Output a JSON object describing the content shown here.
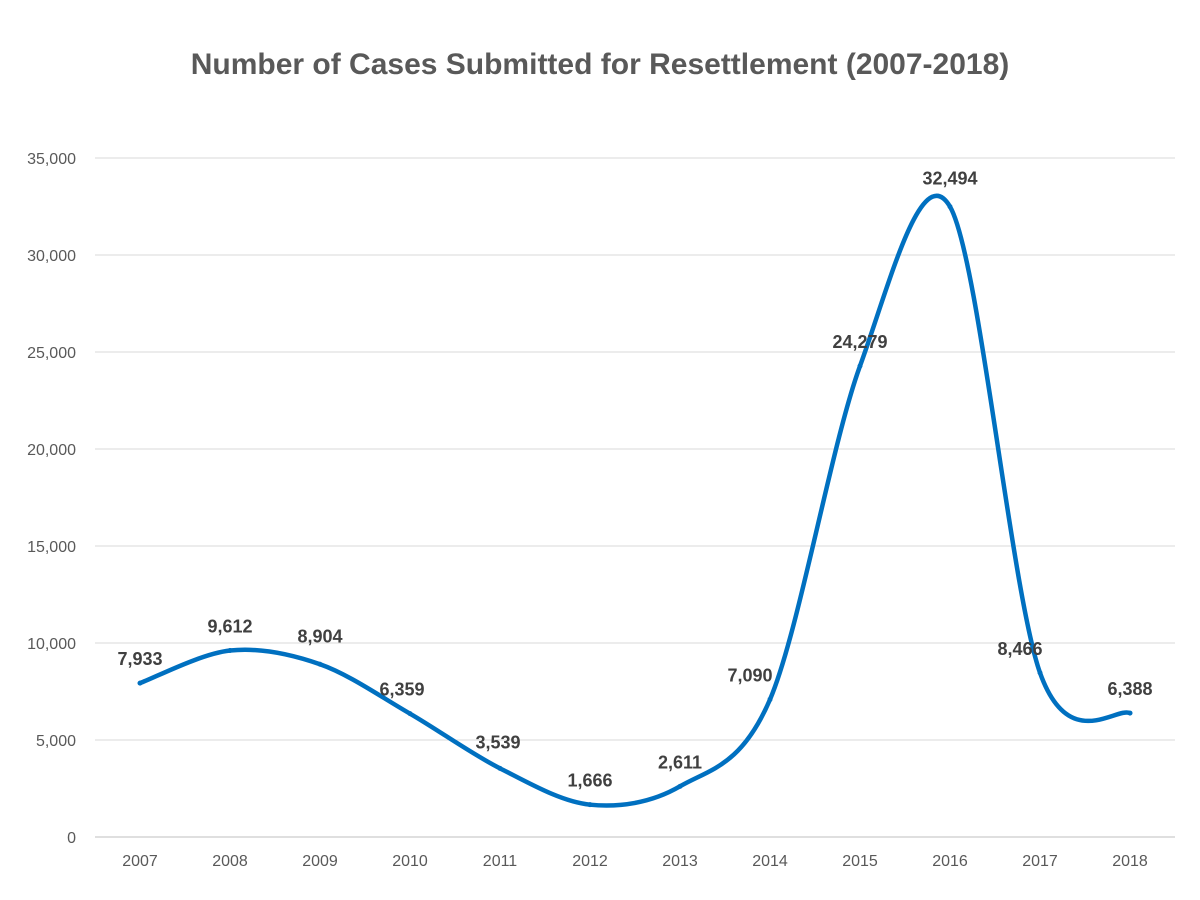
{
  "chart_data": {
    "type": "line",
    "title": "Number of Cases Submitted for Resettlement (2007-2018)",
    "categories": [
      "2007",
      "2008",
      "2009",
      "2010",
      "2011",
      "2012",
      "2013",
      "2014",
      "2015",
      "2016",
      "2017",
      "2018"
    ],
    "values": [
      7933,
      9612,
      8904,
      6359,
      3539,
      1666,
      2611,
      7090,
      24279,
      32494,
      8466,
      6388
    ],
    "data_labels": [
      "7,933",
      "9,612",
      "8,904",
      "6,359",
      "3,539",
      "1,666",
      "2,611",
      "7,090",
      "24,279",
      "32,494",
      "8,466",
      "6,388"
    ],
    "y_ticks": [
      0,
      5000,
      10000,
      15000,
      20000,
      25000,
      30000,
      35000
    ],
    "y_tick_labels": [
      "0",
      "5,000",
      "10,000",
      "15,000",
      "20,000",
      "25,000",
      "30,000",
      "35,000"
    ],
    "ylim": [
      0,
      35000
    ],
    "xlabel": "",
    "ylabel": "",
    "grid": true,
    "line_color": "#0070C0",
    "grid_color": "#D9D9D9"
  }
}
